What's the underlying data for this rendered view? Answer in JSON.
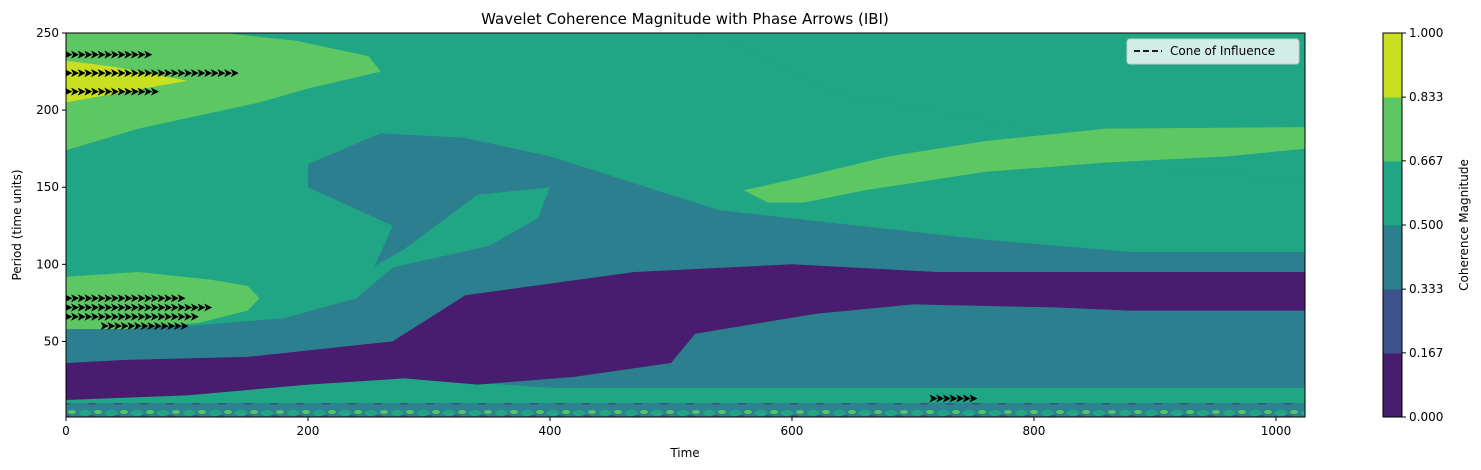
{
  "chart_data": {
    "type": "heatmap",
    "title": "Wavelet Coherence Magnitude with Phase Arrows (IBI)",
    "xlabel": "Time",
    "ylabel": "Period (time units)",
    "xlim": [
      0,
      1024
    ],
    "ylim": [
      1,
      250
    ],
    "x_ticks": [
      0,
      200,
      400,
      600,
      800,
      1000
    ],
    "y_ticks": [
      50,
      100,
      150,
      200,
      250
    ],
    "x_tick_labels": [
      "0",
      "200",
      "400",
      "600",
      "800",
      "1000"
    ],
    "y_tick_labels": [
      "50",
      "100",
      "150",
      "200",
      "250"
    ],
    "grid": false,
    "legend": {
      "position": "top-right",
      "entries": [
        {
          "label": "Cone of Influence",
          "style": "dashed",
          "color": "#000000"
        }
      ]
    },
    "colorbar": {
      "label": "Coherence Magnitude",
      "ticks": [
        0.0,
        0.167,
        0.333,
        0.5,
        0.667,
        0.833,
        1.0
      ],
      "tick_labels": [
        "0.000",
        "0.167",
        "0.333",
        "0.500",
        "0.667",
        "0.833",
        "1.000"
      ],
      "colors": [
        "#481c6e",
        "#3b528b",
        "#2c7f8e",
        "#21a685",
        "#5dc863",
        "#c8e020"
      ]
    },
    "regions": [
      {
        "level": 0.583,
        "description": "teal background",
        "polygon": [
          [
            0,
            1
          ],
          [
            1024,
            1
          ],
          [
            1024,
            250
          ],
          [
            0,
            250
          ]
        ]
      },
      {
        "level": 0.417,
        "polygon": [
          [
            230,
            250
          ],
          [
            1024,
            250
          ],
          [
            1024,
            155
          ],
          [
            920,
            160
          ],
          [
            780,
            190
          ],
          [
            640,
            210
          ],
          [
            560,
            240
          ],
          [
            520,
            250
          ]
        ]
      },
      {
        "level": 0.417,
        "polygon": [
          [
            200,
            165
          ],
          [
            260,
            185
          ],
          [
            330,
            182
          ],
          [
            400,
            170
          ],
          [
            480,
            150
          ],
          [
            540,
            135
          ],
          [
            620,
            128
          ],
          [
            760,
            116
          ],
          [
            880,
            108
          ],
          [
            1024,
            108
          ],
          [
            1024,
            20
          ],
          [
            600,
            20
          ],
          [
            400,
            20
          ],
          [
            250,
            28
          ],
          [
            120,
            30
          ],
          [
            60,
            33
          ],
          [
            0,
            33
          ],
          [
            0,
            60
          ],
          [
            100,
            68
          ],
          [
            190,
            70
          ],
          [
            250,
            90
          ],
          [
            270,
            125
          ],
          [
            200,
            150
          ]
        ]
      },
      {
        "level": 0.583,
        "polygon": [
          [
            260,
            250
          ],
          [
            520,
            250
          ],
          [
            560,
            240
          ],
          [
            640,
            210
          ],
          [
            780,
            190
          ],
          [
            920,
            160
          ],
          [
            1024,
            155
          ],
          [
            1024,
            250
          ]
        ]
      },
      {
        "level": 0.583,
        "polygon": [
          [
            0,
            92
          ],
          [
            60,
            95
          ],
          [
            180,
            90
          ],
          [
            240,
            92
          ],
          [
            280,
            110
          ],
          [
            340,
            145
          ],
          [
            400,
            150
          ],
          [
            390,
            130
          ],
          [
            350,
            112
          ],
          [
            270,
            98
          ],
          [
            240,
            78
          ],
          [
            180,
            65
          ],
          [
            100,
            60
          ],
          [
            0,
            60
          ]
        ]
      },
      {
        "level": 0.75,
        "polygon": [
          [
            0,
            174
          ],
          [
            60,
            188
          ],
          [
            160,
            205
          ],
          [
            200,
            214
          ],
          [
            260,
            225
          ],
          [
            250,
            235
          ],
          [
            190,
            245
          ],
          [
            130,
            250
          ],
          [
            0,
            250
          ]
        ]
      },
      {
        "level": 0.75,
        "polygon": [
          [
            560,
            148
          ],
          [
            600,
            155
          ],
          [
            680,
            170
          ],
          [
            760,
            180
          ],
          [
            860,
            188
          ],
          [
            1024,
            189
          ],
          [
            1024,
            175
          ],
          [
            960,
            170
          ],
          [
            860,
            166
          ],
          [
            760,
            160
          ],
          [
            660,
            148
          ],
          [
            610,
            140
          ],
          [
            580,
            140
          ]
        ]
      },
      {
        "level": 0.75,
        "polygon": [
          [
            0,
            92
          ],
          [
            60,
            95
          ],
          [
            120,
            90
          ],
          [
            150,
            86
          ],
          [
            160,
            78
          ],
          [
            150,
            70
          ],
          [
            110,
            62
          ],
          [
            50,
            58
          ],
          [
            0,
            58
          ]
        ]
      },
      {
        "level": 0.083,
        "polygon": [
          [
            0,
            12
          ],
          [
            100,
            15
          ],
          [
            200,
            22
          ],
          [
            280,
            26
          ],
          [
            340,
            22
          ],
          [
            420,
            27
          ],
          [
            500,
            36
          ],
          [
            520,
            55
          ],
          [
            620,
            68
          ],
          [
            700,
            74
          ],
          [
            820,
            72
          ],
          [
            880,
            70
          ],
          [
            1024,
            70
          ],
          [
            1024,
            95
          ],
          [
            820,
            95
          ],
          [
            720,
            95
          ],
          [
            600,
            100
          ],
          [
            470,
            95
          ],
          [
            330,
            80
          ],
          [
            270,
            50
          ],
          [
            150,
            40
          ],
          [
            50,
            38
          ],
          [
            0,
            36
          ]
        ]
      },
      {
        "level": 0.917,
        "polygon": [
          [
            0,
            205
          ],
          [
            50,
            212
          ],
          [
            100,
            219
          ],
          [
            40,
            228
          ],
          [
            0,
            232
          ]
        ]
      }
    ],
    "arrow_clusters": [
      {
        "x_range": [
          0,
          70
        ],
        "y": 236,
        "direction": "right"
      },
      {
        "x_range": [
          0,
          140
        ],
        "y": 224,
        "direction": "right"
      },
      {
        "x_range": [
          0,
          75
        ],
        "y": 212,
        "direction": "right"
      },
      {
        "x_range": [
          0,
          100
        ],
        "y": 78,
        "direction": "right"
      },
      {
        "x_range": [
          0,
          120
        ],
        "y": 72,
        "direction": "right"
      },
      {
        "x_range": [
          0,
          110
        ],
        "y": 66,
        "direction": "right"
      },
      {
        "x_range": [
          30,
          100
        ],
        "y": 60,
        "direction": "right"
      },
      {
        "x_range": [
          715,
          750
        ],
        "y": 13,
        "direction": "right"
      }
    ]
  }
}
